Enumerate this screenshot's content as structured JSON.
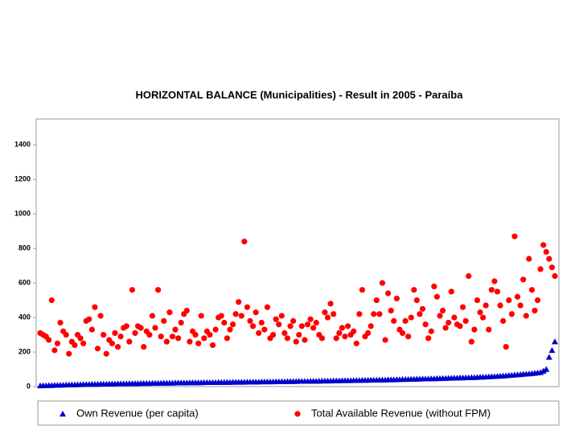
{
  "chart_data": {
    "type": "scatter",
    "title": "HORIZONTAL BALANCE (Municipalities) - Result in 2005 - Paraíba",
    "ylim": [
      0,
      1550
    ],
    "yticks": [
      0,
      200,
      400,
      600,
      800,
      1000,
      1200,
      1400
    ],
    "series": [
      {
        "name": "Own Revenue (per capita)",
        "color": "#0000cc",
        "marker": "triangle",
        "values": [
          5,
          6,
          6,
          7,
          7,
          8,
          8,
          9,
          9,
          10,
          10,
          11,
          11,
          12,
          12,
          13,
          13,
          13,
          14,
          14,
          14,
          15,
          15,
          15,
          16,
          16,
          16,
          17,
          17,
          17,
          17,
          18,
          18,
          18,
          18,
          19,
          19,
          19,
          19,
          20,
          20,
          20,
          20,
          21,
          21,
          21,
          21,
          22,
          22,
          22,
          22,
          22,
          23,
          23,
          23,
          23,
          23,
          24,
          24,
          24,
          24,
          24,
          25,
          25,
          25,
          25,
          25,
          26,
          26,
          26,
          26,
          26,
          27,
          27,
          27,
          27,
          27,
          28,
          28,
          28,
          28,
          28,
          29,
          29,
          29,
          29,
          30,
          30,
          30,
          30,
          31,
          31,
          31,
          31,
          32,
          32,
          32,
          32,
          33,
          33,
          33,
          33,
          34,
          34,
          34,
          35,
          35,
          35,
          35,
          36,
          36,
          36,
          37,
          37,
          37,
          38,
          38,
          38,
          39,
          39,
          39,
          40,
          40,
          40,
          41,
          41,
          42,
          42,
          42,
          43,
          43,
          44,
          44,
          45,
          45,
          45,
          46,
          46,
          47,
          47,
          48,
          48,
          49,
          49,
          50,
          50,
          51,
          51,
          52,
          52,
          53,
          53,
          54,
          55,
          55,
          56,
          57,
          58,
          59,
          60,
          61,
          62,
          63,
          65,
          66,
          68,
          69,
          70,
          72,
          73,
          74,
          76,
          78,
          80,
          82,
          90,
          100,
          170,
          210,
          260
        ]
      },
      {
        "name": "Total Available Revenue (without FPM)",
        "color": "#ff0000",
        "marker": "circle",
        "values": [
          310,
          300,
          290,
          270,
          500,
          210,
          250,
          370,
          320,
          300,
          190,
          260,
          240,
          300,
          280,
          250,
          380,
          390,
          330,
          460,
          220,
          410,
          300,
          190,
          270,
          250,
          310,
          230,
          290,
          340,
          350,
          260,
          560,
          310,
          350,
          340,
          230,
          320,
          300,
          410,
          340,
          560,
          290,
          380,
          260,
          430,
          290,
          330,
          280,
          370,
          420,
          440,
          260,
          320,
          300,
          250,
          410,
          280,
          320,
          300,
          240,
          330,
          400,
          410,
          370,
          280,
          330,
          360,
          420,
          490,
          410,
          840,
          460,
          380,
          350,
          430,
          310,
          370,
          330,
          460,
          280,
          300,
          390,
          360,
          410,
          310,
          280,
          350,
          380,
          260,
          300,
          350,
          270,
          360,
          390,
          340,
          370,
          300,
          280,
          430,
          400,
          480,
          420,
          280,
          310,
          340,
          290,
          350,
          300,
          320,
          250,
          420,
          560,
          290,
          310,
          350,
          420,
          500,
          420,
          600,
          270,
          540,
          440,
          380,
          510,
          330,
          310,
          380,
          290,
          400,
          560,
          500,
          420,
          450,
          360,
          280,
          320,
          580,
          520,
          410,
          440,
          340,
          370,
          550,
          400,
          360,
          350,
          460,
          380,
          640,
          260,
          330,
          500,
          430,
          400,
          470,
          330,
          560,
          610,
          550,
          470,
          380,
          230,
          500,
          420,
          870,
          520,
          470,
          620,
          410,
          740,
          560,
          440,
          500,
          680,
          820,
          780,
          740,
          690,
          640
        ]
      }
    ]
  }
}
